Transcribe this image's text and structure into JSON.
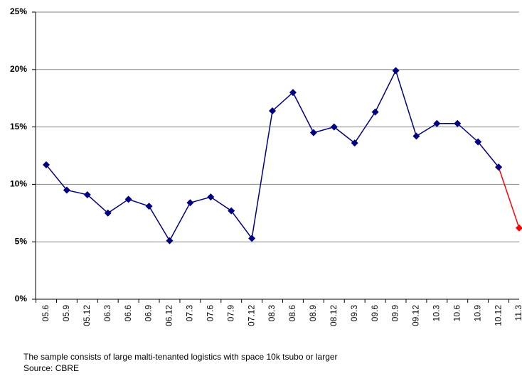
{
  "chart_data": {
    "type": "line",
    "categories": [
      "05.6",
      "05.9",
      "05.12",
      "06.3",
      "06.6",
      "06.9",
      "06.12",
      "07.3",
      "07.6",
      "07.9",
      "07.12",
      "08.3",
      "08.6",
      "08.9",
      "08.12",
      "09.3",
      "09.6",
      "09.9",
      "09.12",
      "10.3",
      "10.6",
      "10.9",
      "10.12",
      "11.3"
    ],
    "series": [
      {
        "color": "#000080",
        "values": [
          11.7,
          9.5,
          9.1,
          7.5,
          8.7,
          8.1,
          5.1,
          8.4,
          8.9,
          7.7,
          5.3,
          16.4,
          18.0,
          14.5,
          15.0,
          13.6,
          16.3,
          19.9,
          14.2,
          15.3,
          15.3,
          13.7,
          11.5,
          null
        ]
      },
      {
        "color": "#ff0000",
        "values": [
          null,
          null,
          null,
          null,
          null,
          null,
          null,
          null,
          null,
          null,
          null,
          null,
          null,
          null,
          null,
          null,
          null,
          null,
          null,
          null,
          null,
          null,
          11.5,
          6.2
        ]
      }
    ],
    "ylim": [
      0,
      25
    ],
    "yticks": [
      {
        "value": 0,
        "label": "0%"
      },
      {
        "value": 5,
        "label": "5%"
      },
      {
        "value": 10,
        "label": "10%"
      },
      {
        "value": 15,
        "label": "15%"
      },
      {
        "value": 20,
        "label": "20%"
      },
      {
        "value": 25,
        "label": "25%"
      }
    ],
    "grid": true,
    "footnotes": [
      "The sample consists of large malti-tenanted logistics with space 10k tsubo or larger",
      "Source: CBRE"
    ]
  }
}
